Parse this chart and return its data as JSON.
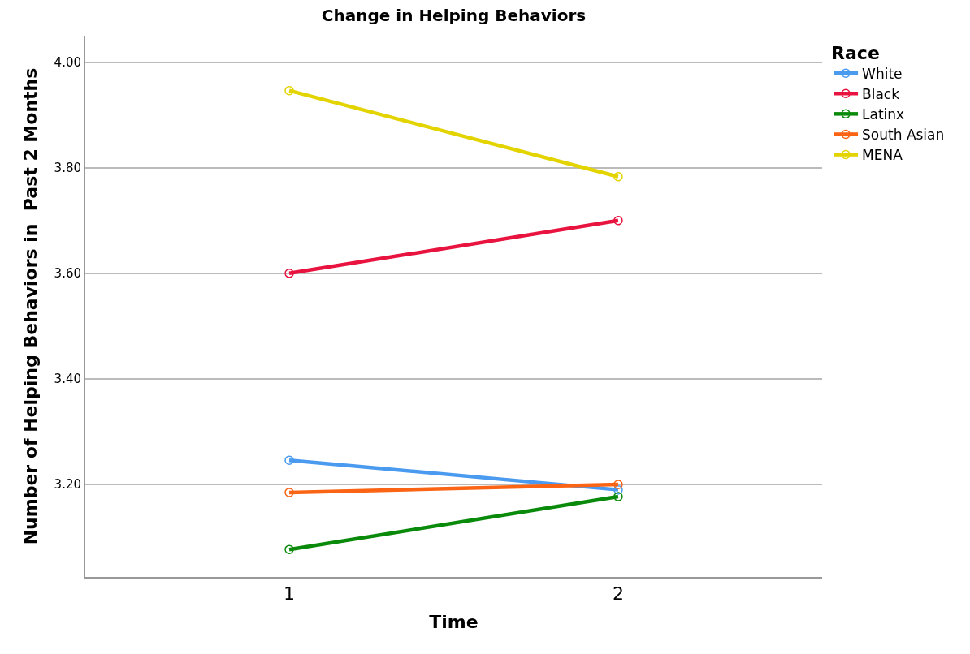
{
  "chart_data": {
    "type": "line",
    "title": "Change in Helping Behaviors",
    "xlabel": "Time",
    "ylabel": "Number of Helping Behaviors in  Past 2 Months",
    "legend_title": "Race",
    "x": [
      1,
      2
    ],
    "xlim": [
      0.38,
      2.62
    ],
    "xticks": [
      1,
      2
    ],
    "ylim": [
      3.025,
      4.05
    ],
    "yticks": [
      {
        "value": 3.2,
        "label": "3.20"
      },
      {
        "value": 3.4,
        "label": "3.40"
      },
      {
        "value": 3.6,
        "label": "3.60"
      },
      {
        "value": 3.8,
        "label": "3.80"
      },
      {
        "value": 4.0,
        "label": "4.00"
      }
    ],
    "series": [
      {
        "name": "White",
        "color": "#4a9af0",
        "values": [
          3.246,
          3.19
        ]
      },
      {
        "name": "Black",
        "color": "#e8133f",
        "values": [
          3.6,
          3.7
        ]
      },
      {
        "name": "Latinx",
        "color": "#0a8a0a",
        "values": [
          3.077,
          3.177
        ]
      },
      {
        "name": "South Asian",
        "color": "#fa6414",
        "values": [
          3.185,
          3.2
        ]
      },
      {
        "name": "MENA",
        "color": "#e3d400",
        "values": [
          3.946,
          3.783
        ]
      }
    ],
    "grid": "y",
    "legend": "top right",
    "marker": "circle",
    "line_style": "solid"
  }
}
